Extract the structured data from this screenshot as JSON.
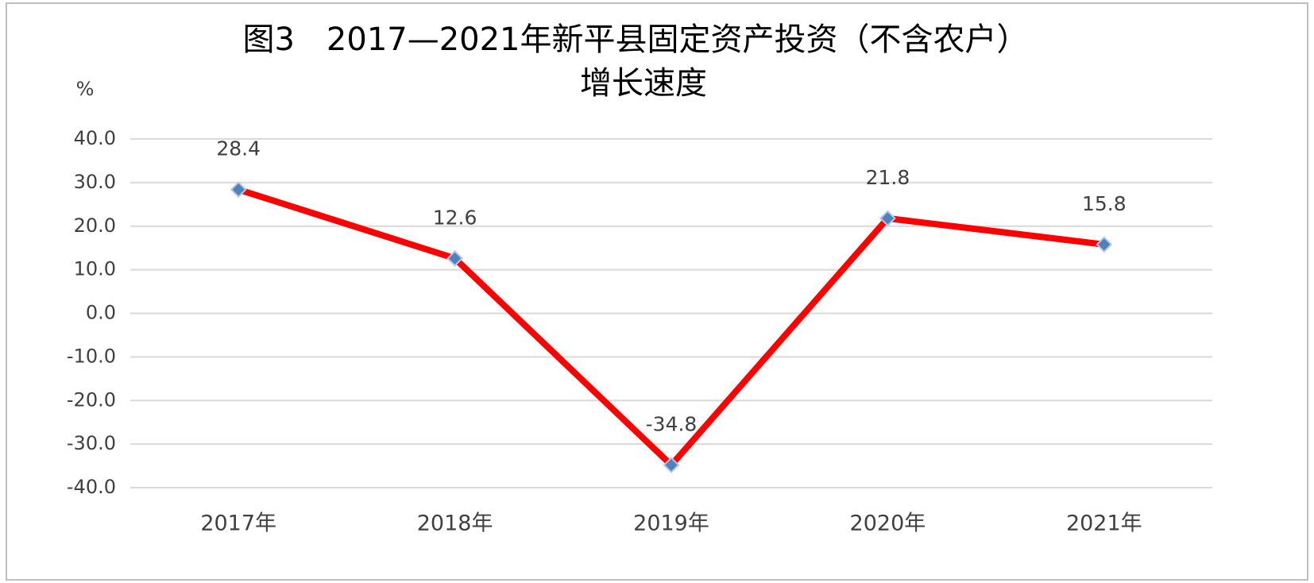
{
  "chart_data": {
    "type": "line",
    "title": [
      "图3　2017—2021年新平县固定资产投资（不含农户）",
      "增长速度"
    ],
    "y_axis_label": "%",
    "categories": [
      "2017年",
      "2018年",
      "2019年",
      "2020年",
      "2021年"
    ],
    "series": [
      {
        "name": "增长速度",
        "color": "#ff0000",
        "marker_color": "#4f81bd",
        "values": [
          28.4,
          12.6,
          -34.8,
          21.8,
          15.8
        ]
      }
    ],
    "ylim": [
      -40,
      40
    ],
    "yticks": [
      {
        "value": -40,
        "label": "-40.0"
      },
      {
        "value": -30,
        "label": "-30.0"
      },
      {
        "value": -20,
        "label": "-20.0"
      },
      {
        "value": -10,
        "label": "-10.0"
      },
      {
        "value": 0,
        "label": "0.0"
      },
      {
        "value": 10,
        "label": "10.0"
      },
      {
        "value": 20,
        "label": "20.0"
      },
      {
        "value": 30,
        "label": "30.0"
      },
      {
        "value": 40,
        "label": "40.0"
      }
    ],
    "grid": true
  }
}
